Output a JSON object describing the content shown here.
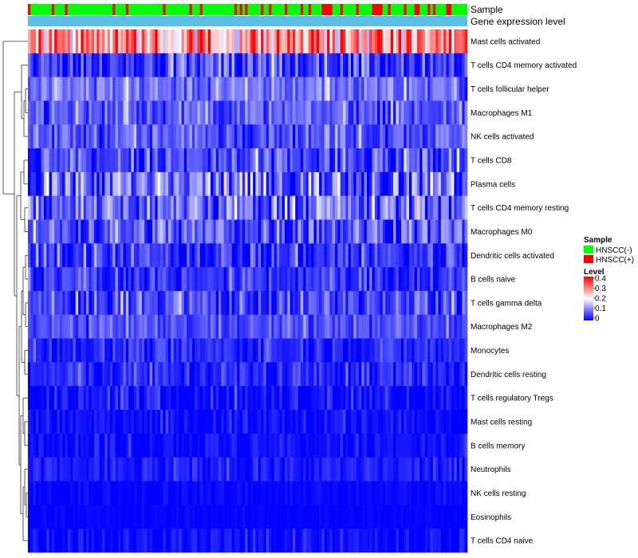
{
  "chart_data": {
    "type": "heatmap",
    "title": "",
    "annotations": [
      {
        "name": "Sample",
        "kind": "categorical"
      },
      {
        "name": "Gene expression level",
        "kind": "continuous"
      }
    ],
    "sample_groups": [
      "HNSCC(-)",
      "HNSCC(+)"
    ],
    "rows": [
      {
        "label": "Mast cells activated",
        "mean": 0.28,
        "spread": 0.1
      },
      {
        "label": "T cells CD4 memory activated",
        "mean": 0.05,
        "spread": 0.06
      },
      {
        "label": "T cells follicular helper",
        "mean": 0.09,
        "spread": 0.04
      },
      {
        "label": "Macrophages M1",
        "mean": 0.07,
        "spread": 0.04
      },
      {
        "label": "NK cells activated",
        "mean": 0.07,
        "spread": 0.04
      },
      {
        "label": "T cells CD8",
        "mean": 0.05,
        "spread": 0.06
      },
      {
        "label": "Plasma cells",
        "mean": 0.08,
        "spread": 0.08
      },
      {
        "label": "T cells CD4 memory resting",
        "mean": 0.08,
        "spread": 0.07
      },
      {
        "label": "Macrophages M0",
        "mean": 0.07,
        "spread": 0.06
      },
      {
        "label": "Dendritic cells activated",
        "mean": 0.04,
        "spread": 0.05
      },
      {
        "label": "B cells naive",
        "mean": 0.04,
        "spread": 0.04
      },
      {
        "label": "T cells gamma delta",
        "mean": 0.05,
        "spread": 0.05
      },
      {
        "label": "Macrophages M2",
        "mean": 0.06,
        "spread": 0.03
      },
      {
        "label": "Monocytes",
        "mean": 0.03,
        "spread": 0.03
      },
      {
        "label": "Dendritic cells resting",
        "mean": 0.03,
        "spread": 0.03
      },
      {
        "label": "T cells regulatory  Tregs",
        "mean": 0.01,
        "spread": 0.03
      },
      {
        "label": "Mast cells resting",
        "mean": 0.01,
        "spread": 0.02
      },
      {
        "label": "B cells memory",
        "mean": 0.01,
        "spread": 0.02
      },
      {
        "label": "Neutrophils",
        "mean": 0.02,
        "spread": 0.02
      },
      {
        "label": "NK cells resting",
        "mean": 0.005,
        "spread": 0.01
      },
      {
        "label": "Eosinophils",
        "mean": 0.003,
        "spread": 0.005
      },
      {
        "label": "T cells CD4 naive",
        "mean": 0.01,
        "spread": 0.02
      }
    ],
    "n_samples": 166,
    "color_scale": {
      "min": 0,
      "max": 0.4,
      "low": "#0000ff",
      "mid": "#ffffff",
      "high": "#ff0000",
      "mid_value": 0.2
    },
    "legend": {
      "position": "right",
      "sample_title": "Sample",
      "level_title": "Level",
      "ticks": [
        "0.4",
        "0.3",
        "0.2",
        "0.1",
        "0"
      ]
    }
  },
  "colors": {
    "hnscc_neg": "#00ff00",
    "hnscc_pos": "#ff0000",
    "expression_bar": "#5bc0e8"
  }
}
